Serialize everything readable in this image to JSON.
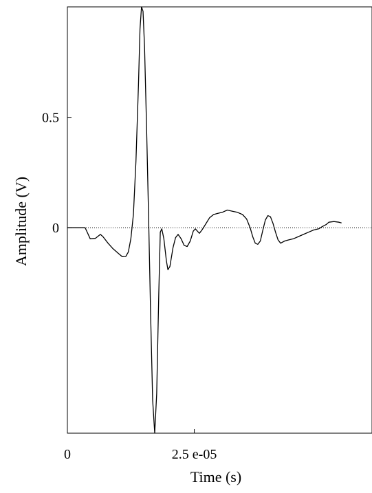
{
  "chart_data": {
    "type": "line",
    "title": "",
    "xlabel": "Time (s)",
    "ylabel": "Amplitude (V)",
    "xlim": [
      0,
      6e-05
    ],
    "ylim": [
      -0.93,
      1.0
    ],
    "x_ticks": [
      {
        "value": 0,
        "label": "0"
      },
      {
        "value": 2.5e-05,
        "label": "2.5 e-05"
      }
    ],
    "y_ticks": [
      {
        "value": 0,
        "label": "0"
      },
      {
        "value": 0.5,
        "label": "0.5"
      }
    ],
    "zero_reference_line": true,
    "grid": false,
    "series": [
      {
        "points": [
          [
            0.0,
            0.0
          ],
          [
            3.5e-06,
            0.0
          ],
          [
            3.8e-06,
            -0.015
          ],
          [
            4.5e-06,
            -0.05
          ],
          [
            5.5e-06,
            -0.048
          ],
          [
            6.5e-06,
            -0.03
          ],
          [
            7e-06,
            -0.04
          ],
          [
            8e-06,
            -0.07
          ],
          [
            9e-06,
            -0.095
          ],
          [
            1e-05,
            -0.115
          ],
          [
            1.08e-05,
            -0.131
          ],
          [
            1.15e-05,
            -0.13
          ],
          [
            1.2e-05,
            -0.11
          ],
          [
            1.25e-05,
            -0.05
          ],
          [
            1.3e-05,
            0.06
          ],
          [
            1.35e-05,
            0.3
          ],
          [
            1.4e-05,
            0.65
          ],
          [
            1.43e-05,
            0.9
          ],
          [
            1.46e-05,
            1.0
          ],
          [
            1.49e-05,
            0.98
          ],
          [
            1.52e-05,
            0.82
          ],
          [
            1.56e-05,
            0.45
          ],
          [
            1.6e-05,
            0.05
          ],
          [
            1.64e-05,
            -0.4
          ],
          [
            1.68e-05,
            -0.78
          ],
          [
            1.72e-05,
            -0.93
          ],
          [
            1.76e-05,
            -0.75
          ],
          [
            1.8e-05,
            -0.3
          ],
          [
            1.83e-05,
            -0.02
          ],
          [
            1.86e-05,
            -0.005
          ],
          [
            1.9e-05,
            -0.05
          ],
          [
            1.95e-05,
            -0.15
          ],
          [
            1.98e-05,
            -0.19
          ],
          [
            2.02e-05,
            -0.175
          ],
          [
            2.08e-05,
            -0.09
          ],
          [
            2.13e-05,
            -0.045
          ],
          [
            2.18e-05,
            -0.03
          ],
          [
            2.24e-05,
            -0.05
          ],
          [
            2.3e-05,
            -0.08
          ],
          [
            2.36e-05,
            -0.085
          ],
          [
            2.42e-05,
            -0.06
          ],
          [
            2.48e-05,
            -0.015
          ],
          [
            2.52e-05,
            -0.005
          ],
          [
            2.56e-05,
            -0.015
          ],
          [
            2.6e-05,
            -0.025
          ],
          [
            2.65e-05,
            -0.01
          ],
          [
            2.72e-05,
            0.015
          ],
          [
            2.8e-05,
            0.045
          ],
          [
            2.88e-05,
            0.06
          ],
          [
            2.96e-05,
            0.065
          ],
          [
            3.05e-05,
            0.07
          ],
          [
            3.15e-05,
            0.08
          ],
          [
            3.25e-05,
            0.075
          ],
          [
            3.35e-05,
            0.07
          ],
          [
            3.45e-05,
            0.06
          ],
          [
            3.53e-05,
            0.04
          ],
          [
            3.6e-05,
            0.0
          ],
          [
            3.65e-05,
            -0.04
          ],
          [
            3.7e-05,
            -0.07
          ],
          [
            3.75e-05,
            -0.075
          ],
          [
            3.8e-05,
            -0.06
          ],
          [
            3.85e-05,
            -0.01
          ],
          [
            3.9e-05,
            0.035
          ],
          [
            3.95e-05,
            0.055
          ],
          [
            4e-05,
            0.05
          ],
          [
            4.05e-05,
            0.02
          ],
          [
            4.1e-05,
            -0.02
          ],
          [
            4.15e-05,
            -0.055
          ],
          [
            4.2e-05,
            -0.07
          ],
          [
            4.28e-05,
            -0.06
          ],
          [
            4.36e-05,
            -0.055
          ],
          [
            4.45e-05,
            -0.05
          ],
          [
            4.55e-05,
            -0.04
          ],
          [
            4.65e-05,
            -0.03
          ],
          [
            4.75e-05,
            -0.02
          ],
          [
            4.85e-05,
            -0.01
          ],
          [
            4.95e-05,
            -0.005
          ],
          [
            5.02e-05,
            0.005
          ],
          [
            5.1e-05,
            0.015
          ],
          [
            5.15e-05,
            0.025
          ],
          [
            5.25e-05,
            0.028
          ],
          [
            5.35e-05,
            0.025
          ],
          [
            5.4e-05,
            0.022
          ]
        ]
      }
    ]
  }
}
